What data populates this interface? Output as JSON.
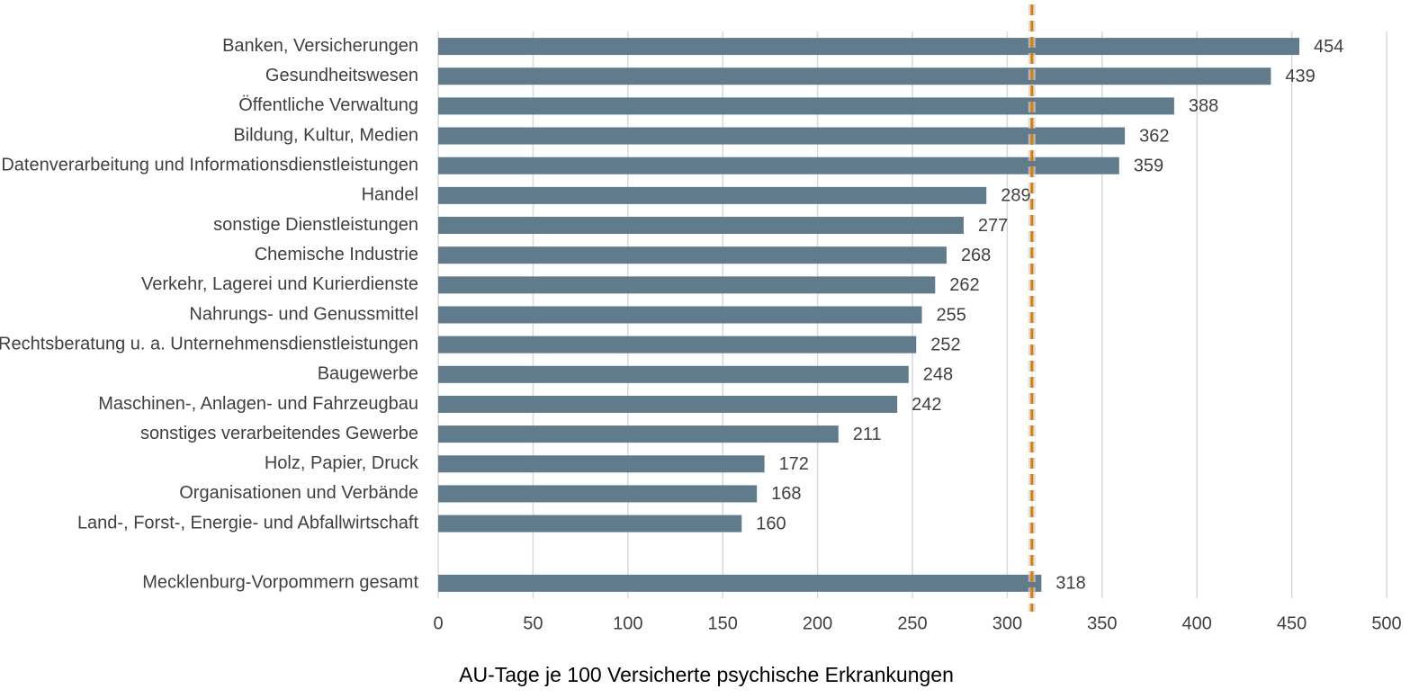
{
  "chart_data": {
    "type": "bar",
    "orientation": "horizontal",
    "x_label": "AU-Tage je 100 Versicherte psychische Erkrankungen",
    "categories": [
      "Banken, Versicherungen",
      "Gesundheitswesen",
      "Öffentliche Verwaltung",
      "Bildung, Kultur, Medien",
      "Datenverarbeitung und Informationsdienstleistungen",
      "Handel",
      "sonstige Dienstleistungen",
      "Chemische Industrie",
      "Verkehr, Lagerei und Kurierdienste",
      "Nahrungs- und Genussmittel",
      "Rechtsberatung u. a. Unternehmensdienstleistungen",
      "Baugewerbe",
      "Maschinen-, Anlagen- und Fahrzeugbau",
      "sonstiges verarbeitendes Gewerbe",
      "Holz, Papier, Druck",
      "Organisationen und Verbände",
      "Land-, Forst-,  Energie- und Abfallwirtschaft",
      null,
      "Mecklenburg-Vorpommern gesamt"
    ],
    "values": [
      454,
      439,
      388,
      362,
      359,
      289,
      277,
      268,
      262,
      255,
      252,
      248,
      242,
      211,
      172,
      168,
      160,
      null,
      318
    ],
    "color": "#607b8b",
    "xlim": [
      0,
      500
    ],
    "xticks": [
      0,
      50,
      100,
      150,
      200,
      250,
      300,
      350,
      400,
      450,
      500
    ],
    "grid": true,
    "reference_line": {
      "value": 313,
      "color": "#e07b00"
    }
  }
}
